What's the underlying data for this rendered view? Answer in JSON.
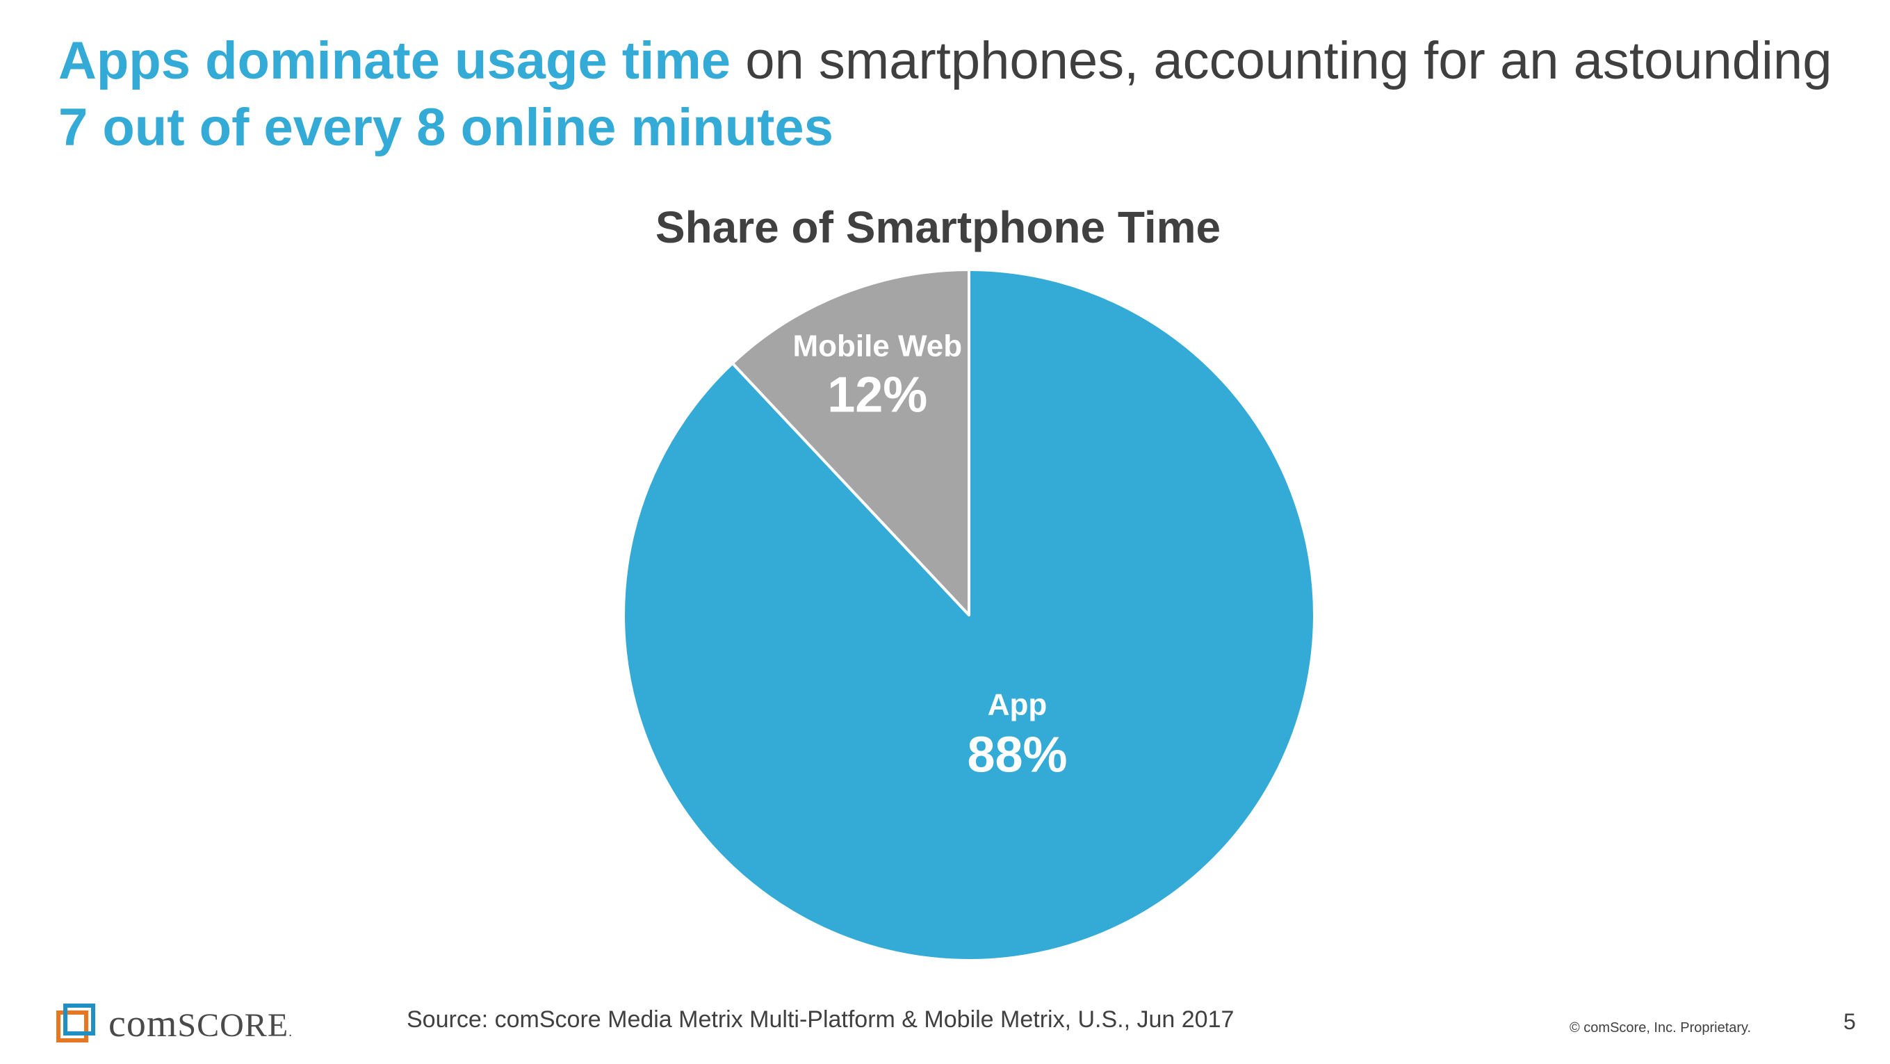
{
  "headline": {
    "part1": "Apps dominate usage time",
    "part2": " on smartphones, accounting for an astounding ",
    "part3": "7 out of every 8 online minutes"
  },
  "chart_data": {
    "type": "pie",
    "title": "Share of Smartphone Time",
    "slices": [
      {
        "label": "App",
        "value": 88,
        "value_label": "88%",
        "color": "#33abd6"
      },
      {
        "label": "Mobile Web",
        "value": 12,
        "value_label": "12%",
        "color": "#a5a5a5"
      }
    ],
    "start": "12 o'clock",
    "direction": "clockwise"
  },
  "footer": {
    "source": "Source: comScore Media Metrix Multi-Platform & Mobile Metrix, U.S., Jun 2017",
    "copyright": "© comScore, Inc. Proprietary.",
    "page_number": "5",
    "logo_text_lower": "com",
    "logo_text_caps": "SCORE",
    "logo_mark": "."
  },
  "colors": {
    "accent": "#33abd6",
    "text": "#3f3f3f",
    "slice_separator": "#ffffff",
    "logo_blue": "#1f8fc4",
    "logo_orange": "#e87722"
  }
}
